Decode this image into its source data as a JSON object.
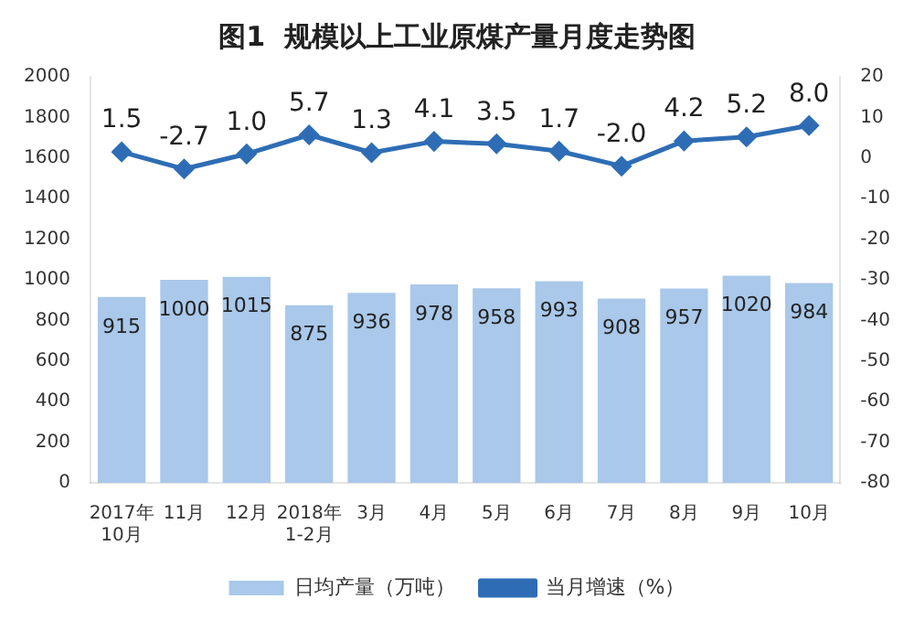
{
  "chart_data": {
    "type": "bar",
    "title": "图1  规模以上工业原煤产量月度走势图",
    "categories": [
      "2017年\n10月",
      "11月",
      "12月",
      "2018年\n1-2月",
      "3月",
      "4月",
      "5月",
      "6月",
      "7月",
      "8月",
      "9月",
      "10月"
    ],
    "series": [
      {
        "name": "日均产量（万吨）",
        "color": "#a9c8ea",
        "values": [
          915,
          1000,
          1015,
          875,
          936,
          978,
          958,
          993,
          908,
          957,
          1020,
          984
        ]
      },
      {
        "name": "当月增速（%）",
        "type": "line",
        "axis": "y2",
        "color": "#2e6db5",
        "values": [
          1.5,
          -2.7,
          1.0,
          5.7,
          1.3,
          4.1,
          3.5,
          1.7,
          -2.0,
          4.2,
          5.2,
          8.0
        ],
        "value_labels": [
          "1.5",
          "-2.7",
          "1.0",
          "5.7",
          "1.3",
          "4.1",
          "3.5",
          "1.7",
          "-2.0",
          "4.2",
          "5.2",
          "8.0"
        ]
      }
    ],
    "ylim": [
      0,
      2000
    ],
    "yticks": [
      0,
      200,
      400,
      600,
      800,
      1000,
      1200,
      1400,
      1600,
      1800,
      2000
    ],
    "y2lim": [
      -80,
      20
    ],
    "y2ticks": [
      -80,
      -70,
      -60,
      -50,
      -40,
      -30,
      -20,
      -10,
      0,
      10,
      20
    ],
    "data_labels": true,
    "grid": false,
    "legend": "bottom",
    "marker": "diamond",
    "line_style": "solid"
  }
}
